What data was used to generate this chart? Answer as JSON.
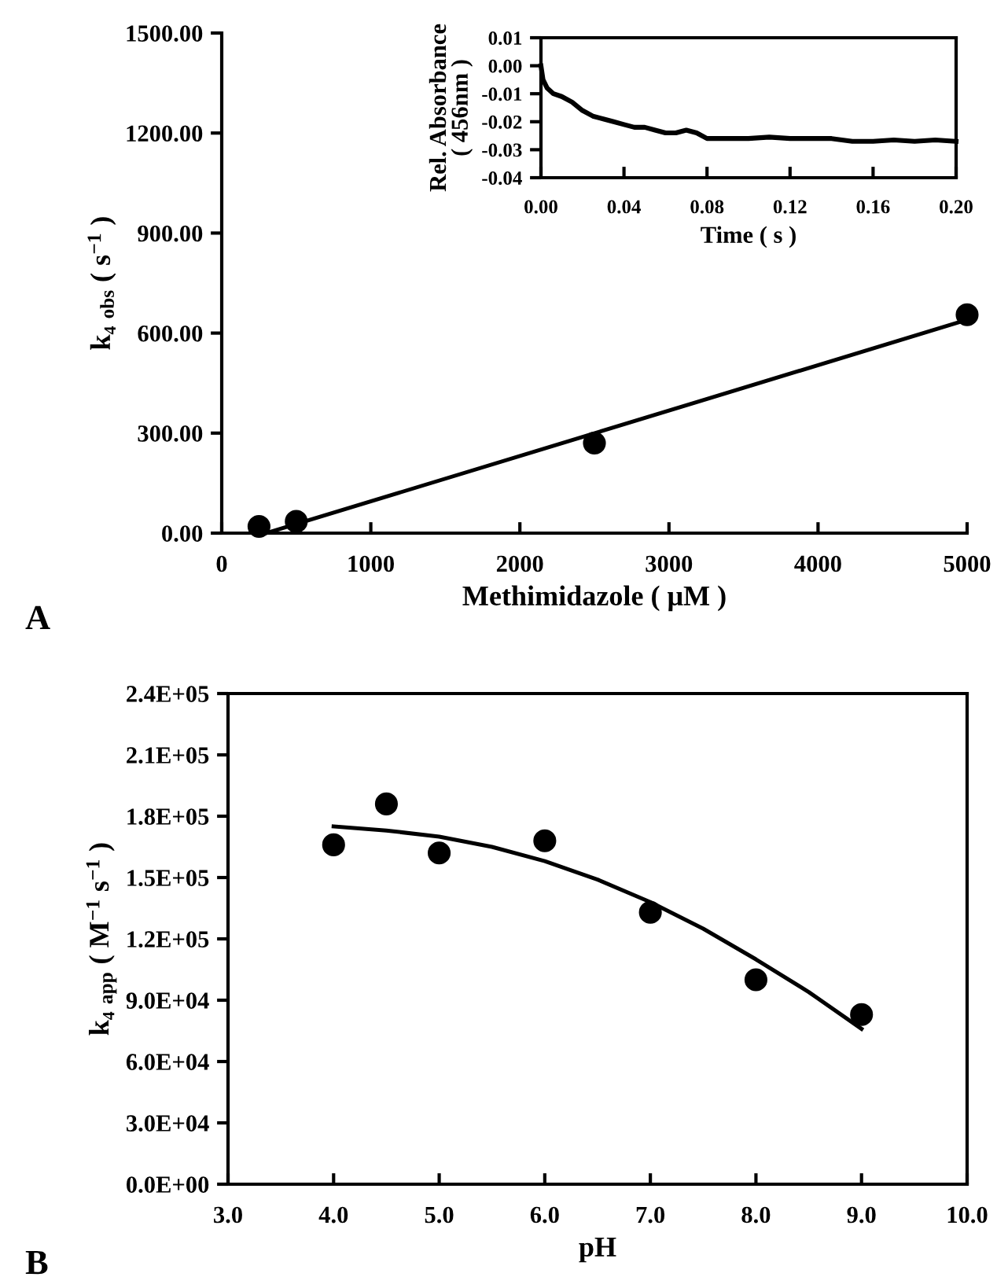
{
  "chart_data": [
    {
      "type": "scatter",
      "xlabel": "Methimidazole ( μM )",
      "ylabel": "k₄ $_{obs}$ ( s$^{−1}$ )",
      "annotations": [
        "A"
      ],
      "xlim": [
        0,
        5000
      ],
      "xticks": [
        0,
        1000,
        2000,
        3000,
        4000,
        5000
      ],
      "ylim": [
        0,
        1500
      ],
      "yticks": [
        {
          "value": 0,
          "label": "0.00"
        },
        {
          "value": 300,
          "label": "300.00"
        },
        {
          "value": 600,
          "label": "600.00"
        },
        {
          "value": 900,
          "label": "900.00"
        },
        {
          "value": 1200,
          "label": "1200.00"
        },
        {
          "value": 1500,
          "label": "1500.00"
        }
      ],
      "grid": false,
      "series": [
        {
          "marker": "circle",
          "color": "#000000",
          "x": [
            250,
            500,
            2500,
            5000
          ],
          "values": [
            20,
            35,
            270,
            655
          ]
        },
        {
          "type": "line",
          "marker": "none",
          "line_style": "solid",
          "color": "#000000",
          "x": [
            300,
            5000
          ],
          "values": [
            0,
            640
          ]
        }
      ]
    },
    {
      "type": "line",
      "xlabel": "Time ( s )",
      "ylabel": "Rel. Absorbance\n( 456nm )",
      "xlim": [
        0,
        0.2
      ],
      "xticks": [
        {
          "value": 0,
          "label": "0.00"
        },
        {
          "value": 0.04,
          "label": "0.04"
        },
        {
          "value": 0.08,
          "label": "0.08"
        },
        {
          "value": 0.12,
          "label": "0.12"
        },
        {
          "value": 0.16,
          "label": "0.16"
        },
        {
          "value": 0.2,
          "label": "0.20"
        }
      ],
      "ylim": [
        -0.04,
        0.01
      ],
      "yticks": [
        {
          "value": -0.04,
          "label": "-0.04"
        },
        {
          "value": -0.03,
          "label": "-0.03"
        },
        {
          "value": -0.02,
          "label": "-0.02"
        },
        {
          "value": -0.01,
          "label": "-0.01"
        },
        {
          "value": 0,
          "label": "0.00"
        },
        {
          "value": 0.01,
          "label": "0.01"
        }
      ],
      "grid": false,
      "series": [
        {
          "marker": "none",
          "line_style": "solid",
          "color": "#000000",
          "x": [
            0,
            0.001,
            0.003,
            0.006,
            0.01,
            0.015,
            0.02,
            0.025,
            0.03,
            0.035,
            0.04,
            0.045,
            0.05,
            0.055,
            0.06,
            0.065,
            0.07,
            0.075,
            0.08,
            0.085,
            0.09,
            0.1,
            0.11,
            0.12,
            0.13,
            0.14,
            0.15,
            0.16,
            0.17,
            0.18,
            0.19,
            0.2
          ],
          "values": [
            0.0,
            -0.005,
            -0.008,
            -0.01,
            -0.011,
            -0.013,
            -0.016,
            -0.018,
            -0.019,
            -0.02,
            -0.021,
            -0.022,
            -0.022,
            -0.023,
            -0.024,
            -0.024,
            -0.023,
            -0.024,
            -0.026,
            -0.026,
            -0.026,
            -0.026,
            -0.0255,
            -0.026,
            -0.026,
            -0.026,
            -0.027,
            -0.027,
            -0.0265,
            -0.027,
            -0.0265,
            -0.027
          ]
        }
      ]
    },
    {
      "type": "scatter",
      "xlabel": "pH",
      "ylabel": "k₄ $_{app}$ ( M$^{−1}$ s$^{−1}$ )",
      "annotations": [
        "B"
      ],
      "xlim": [
        3,
        10
      ],
      "xticks": [
        {
          "value": 3,
          "label": "3.0"
        },
        {
          "value": 4,
          "label": "4.0"
        },
        {
          "value": 5,
          "label": "5.0"
        },
        {
          "value": 6,
          "label": "6.0"
        },
        {
          "value": 7,
          "label": "7.0"
        },
        {
          "value": 8,
          "label": "8.0"
        },
        {
          "value": 9,
          "label": "9.0"
        },
        {
          "value": 10,
          "label": "10.0"
        }
      ],
      "ylim": [
        0,
        240000
      ],
      "yticks": [
        {
          "value": 0,
          "label": "0.0E+00"
        },
        {
          "value": 30000,
          "label": "3.0E+04"
        },
        {
          "value": 60000,
          "label": "6.0E+04"
        },
        {
          "value": 90000,
          "label": "9.0E+04"
        },
        {
          "value": 120000,
          "label": "1.2E+05"
        },
        {
          "value": 150000,
          "label": "1.5E+05"
        },
        {
          "value": 180000,
          "label": "1.8E+05"
        },
        {
          "value": 210000,
          "label": "2.1E+05"
        },
        {
          "value": 240000,
          "label": "2.4E+05"
        }
      ],
      "grid": false,
      "series": [
        {
          "marker": "circle",
          "color": "#000000",
          "x": [
            4,
            4.5,
            5,
            6,
            7,
            8,
            9
          ],
          "values": [
            166000,
            186000,
            162000,
            168000,
            133000,
            100000,
            83000
          ]
        },
        {
          "type": "line",
          "marker": "none",
          "line_style": "solid",
          "color": "#000000",
          "x": [
            4,
            4.5,
            5,
            5.5,
            6,
            6.5,
            7,
            7.5,
            8,
            8.5,
            9
          ],
          "values": [
            175000,
            173000,
            170000,
            165000,
            158000,
            149000,
            138000,
            125000,
            110000,
            94000,
            76000
          ]
        }
      ]
    }
  ]
}
